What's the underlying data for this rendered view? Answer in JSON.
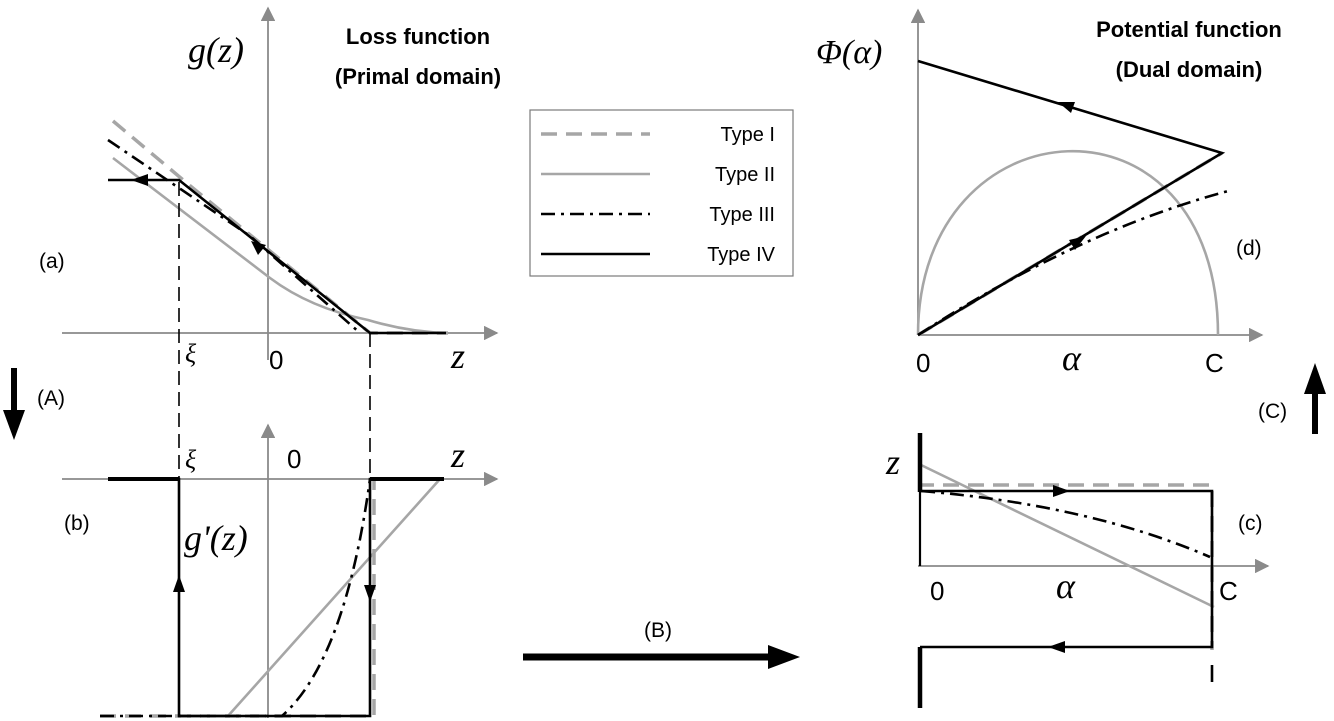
{
  "titles": {
    "loss_line1": "Loss function",
    "loss_line2": "(Primal domain)",
    "potential_line1": "Potential function",
    "potential_line2": "(Dual domain)"
  },
  "panel_labels": {
    "a": "(a)",
    "b": "(b)",
    "c": "(c)",
    "d": "(d)",
    "A": "(A)",
    "B": "(B)",
    "C": "(C)"
  },
  "axis_labels": {
    "g_of_z": "g(z)",
    "g_prime_of_z": "g'(z)",
    "phi_of_alpha": "Φ(α)",
    "z": "z",
    "alpha": "α",
    "zero": "0",
    "C": "C",
    "xi": "ξ"
  },
  "legend": {
    "items": [
      {
        "label": "Type I",
        "style": "dashed-gray"
      },
      {
        "label": "Type II",
        "style": "solid-gray"
      },
      {
        "label": "Type III",
        "style": "dashdot-black"
      },
      {
        "label": "Type IV",
        "style": "solid-black"
      }
    ]
  },
  "colors": {
    "black": "#000000",
    "gray": "#a6a6a6",
    "axis": "#8a8a8a"
  }
}
